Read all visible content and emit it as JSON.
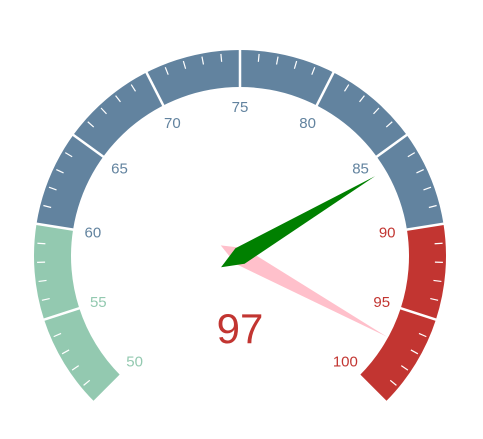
{
  "chart_data": {
    "type": "gauge",
    "min": 50,
    "max": 100,
    "value": 97,
    "display_value": "97",
    "secondary_pointer_value": 86,
    "major_ticks": [
      50,
      55,
      60,
      65,
      70,
      75,
      80,
      85,
      90,
      95,
      100
    ],
    "tick_labels": [
      "50",
      "55",
      "60",
      "65",
      "70",
      "75",
      "80",
      "85",
      "90",
      "95",
      "100"
    ],
    "minor_ticks_per_segment": 4,
    "bands": [
      {
        "from": 50,
        "to": 60,
        "color": "#93c9b0"
      },
      {
        "from": 60,
        "to": 90,
        "color": "#62839f"
      },
      {
        "from": 90,
        "to": 100,
        "color": "#c23531"
      }
    ],
    "pointers": [
      {
        "role": "value",
        "value": 97,
        "color": "#ffc0cb"
      },
      {
        "role": "secondary",
        "value": 86,
        "color": "#008000"
      }
    ],
    "value_color": "#c23531"
  }
}
